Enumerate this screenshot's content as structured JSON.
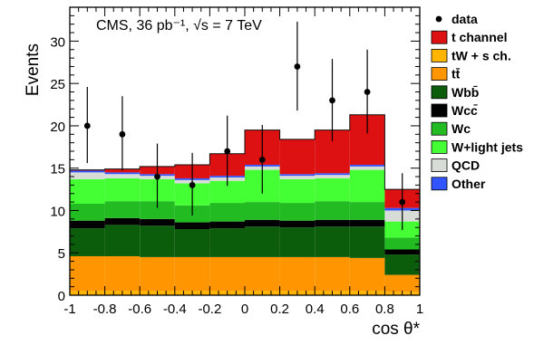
{
  "chart_data": {
    "type": "bar",
    "stacked": true,
    "bin_edges": [
      -1,
      -0.8,
      -0.6,
      -0.4,
      -0.2,
      0,
      0.2,
      0.4,
      0.6,
      0.8,
      1
    ],
    "xlim": [
      -1,
      1
    ],
    "ylim": [
      0,
      34
    ],
    "xlabel": "cos θ*",
    "ylabel": "Events",
    "annotation": "CMS, 36 pb⁻¹, √s = 7 TeV",
    "x_ticks": [
      "-1",
      "-0.8",
      "-0.6",
      "-0.4",
      "-0.2",
      "0",
      "0.2",
      "0.4",
      "0.6",
      "0.8",
      "1"
    ],
    "y_ticks": [
      "0",
      "5",
      "10",
      "15",
      "20",
      "25",
      "30"
    ],
    "x_tick_values": [
      -1,
      -0.8,
      -0.6,
      -0.4,
      -0.2,
      0,
      0.2,
      0.4,
      0.6,
      0.8,
      1
    ],
    "y_tick_values": [
      0,
      5,
      10,
      15,
      20,
      25,
      30
    ],
    "legend_position": "right, outside plot",
    "series": [
      {
        "name": "tW + s ch.",
        "color": "#ffb400",
        "values": [
          0.5,
          0.5,
          0.5,
          0.5,
          0.5,
          0.5,
          0.5,
          0.5,
          0.5,
          0.4
        ]
      },
      {
        "name": "tt̄",
        "color": "#ff9500",
        "values": [
          4.1,
          4.1,
          4.0,
          4.0,
          4.0,
          4.0,
          4.0,
          4.0,
          3.9,
          2.0
        ]
      },
      {
        "name": "Wbb̄",
        "color": "#0b5c0b",
        "values": [
          3.3,
          3.7,
          3.7,
          3.3,
          3.4,
          3.6,
          3.5,
          3.6,
          3.7,
          2.4
        ]
      },
      {
        "name": "Wcc̄",
        "color": "#000000",
        "values": [
          0.9,
          0.8,
          0.8,
          0.8,
          0.8,
          0.8,
          0.8,
          0.8,
          0.8,
          0.6
        ]
      },
      {
        "name": "Wc",
        "color": "#22bb22",
        "values": [
          2.0,
          2.0,
          2.1,
          2.0,
          2.2,
          2.1,
          2.1,
          2.2,
          2.1,
          1.4
        ]
      },
      {
        "name": "W+light jets",
        "color": "#44ff33",
        "values": [
          2.9,
          2.7,
          2.6,
          2.6,
          2.6,
          3.8,
          2.8,
          2.7,
          3.8,
          1.9
        ]
      },
      {
        "name": "QCD",
        "color": "#d7dcd7",
        "values": [
          0.8,
          0.5,
          0.4,
          0.4,
          0.4,
          0.4,
          0.4,
          0.4,
          0.4,
          1.3
        ]
      },
      {
        "name": "Other",
        "color": "#3355ff",
        "values": [
          0.2,
          0.2,
          0.2,
          0.2,
          0.2,
          0.2,
          0.2,
          0.2,
          0.2,
          0.3
        ]
      },
      {
        "name": "t channel",
        "color": "#dd1111",
        "values": [
          0.1,
          0.4,
          0.9,
          1.6,
          2.6,
          4.1,
          4.1,
          5.1,
          5.9,
          2.2
        ]
      }
    ],
    "data": {
      "name": "data",
      "x": [
        -0.9,
        -0.7,
        -0.5,
        -0.3,
        -0.1,
        0.1,
        0.3,
        0.5,
        0.7,
        0.9
      ],
      "y": [
        20,
        19,
        14,
        13,
        17,
        16,
        27,
        23,
        24,
        11
      ],
      "err_low": [
        4.4,
        4.3,
        3.7,
        3.6,
        4.1,
        4.0,
        5.2,
        4.8,
        4.9,
        3.3
      ],
      "err_high": [
        4.6,
        4.5,
        3.9,
        3.8,
        4.2,
        4.1,
        5.3,
        4.9,
        5.0,
        3.4
      ]
    },
    "legend": [
      {
        "label": "data",
        "kind": "marker",
        "color": "#000000"
      },
      {
        "label": "t channel",
        "kind": "box",
        "color": "#dd1111"
      },
      {
        "label": "tW + s ch.",
        "kind": "box",
        "color": "#ffb400"
      },
      {
        "label": "tt̄",
        "kind": "box",
        "color": "#ff9500"
      },
      {
        "label": "Wbb̄",
        "kind": "box",
        "color": "#0b5c0b"
      },
      {
        "label": "Wcc̄",
        "kind": "box",
        "color": "#000000"
      },
      {
        "label": "Wc",
        "kind": "box",
        "color": "#22bb22"
      },
      {
        "label": "W+light jets",
        "kind": "box",
        "color": "#44ff33"
      },
      {
        "label": "QCD",
        "kind": "box",
        "color": "#d7dcd7"
      },
      {
        "label": "Other",
        "kind": "box",
        "color": "#3355ff"
      }
    ]
  }
}
